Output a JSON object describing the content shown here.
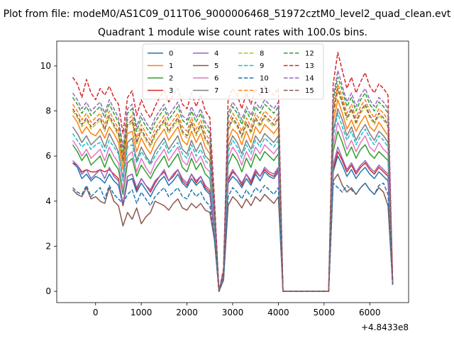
{
  "figure": {
    "suptitle": "Plot from file: modeM0/AS1C09_011T06_9000006468_51972cztM0_level2_quad_clean.evt",
    "offset_label": "+4.8433e8"
  },
  "chart_data": {
    "type": "line",
    "title": "Quadrant 1 module wise count rates with 100.0s bins.",
    "xlabel": "",
    "ylabel": "",
    "xlim": [
      -850,
      6850
    ],
    "ylim": [
      -0.5,
      11.1
    ],
    "xticks": [
      0,
      1000,
      2000,
      3000,
      4000,
      5000,
      6000
    ],
    "yticks": [
      0,
      2,
      4,
      6,
      8,
      10
    ],
    "x_offset": 484330000,
    "legend_location": "upper-center",
    "x": [
      -500,
      -400,
      -300,
      -200,
      -100,
      0,
      100,
      200,
      300,
      400,
      500,
      600,
      700,
      800,
      900,
      1000,
      1100,
      1200,
      1300,
      1400,
      1500,
      1600,
      1700,
      1800,
      1900,
      2000,
      2100,
      2200,
      2300,
      2400,
      2500,
      2600,
      2700,
      2800,
      2900,
      3000,
      3100,
      3200,
      3300,
      3400,
      3500,
      3600,
      3700,
      3800,
      3900,
      4000,
      4100,
      5100,
      5200,
      5300,
      5400,
      5500,
      5600,
      5700,
      5800,
      5900,
      6000,
      6100,
      6200,
      6300,
      6400,
      6500
    ],
    "series": [
      {
        "name": "0",
        "color": "#1f77b4",
        "dash": "solid",
        "values": [
          5.7,
          5.5,
          5.0,
          5.2,
          4.9,
          5.1,
          5.0,
          4.8,
          5.2,
          4.9,
          4.7,
          3.8,
          4.9,
          5.0,
          4.4,
          4.8,
          4.5,
          4.2,
          4.6,
          4.9,
          5.1,
          4.7,
          4.9,
          5.2,
          4.8,
          4.6,
          5.0,
          4.7,
          4.9,
          4.5,
          4.3,
          2.6,
          0.0,
          0.6,
          4.8,
          5.1,
          4.9,
          4.6,
          5.0,
          4.7,
          5.2,
          4.9,
          5.3,
          5.1,
          5.0,
          5.3,
          0.0,
          0.0,
          5.3,
          6.0,
          5.6,
          5.1,
          5.4,
          5.0,
          5.3,
          5.5,
          5.2,
          5.0,
          5.3,
          5.1,
          4.9,
          0.3
        ]
      },
      {
        "name": "1",
        "color": "#ff7f0e",
        "dash": "solid",
        "values": [
          7.8,
          7.5,
          7.0,
          7.3,
          7.0,
          6.9,
          7.2,
          6.8,
          7.3,
          7.0,
          6.6,
          5.4,
          7.0,
          7.1,
          6.2,
          6.8,
          6.4,
          6.1,
          6.6,
          6.9,
          7.2,
          6.7,
          7.0,
          7.3,
          6.7,
          6.5,
          7.1,
          6.6,
          7.0,
          6.4,
          6.1,
          3.3,
          0.0,
          0.8,
          6.7,
          7.2,
          7.0,
          6.5,
          7.1,
          6.6,
          7.3,
          7.0,
          7.4,
          7.2,
          7.0,
          7.3,
          0.0,
          0.0,
          7.5,
          8.5,
          7.9,
          7.2,
          7.6,
          7.1,
          7.5,
          7.8,
          7.3,
          7.1,
          7.5,
          7.2,
          6.9,
          0.4
        ]
      },
      {
        "name": "2",
        "color": "#2ca02c",
        "dash": "solid",
        "values": [
          6.5,
          6.2,
          5.8,
          6.1,
          5.6,
          5.8,
          6.0,
          5.5,
          6.1,
          5.7,
          5.4,
          4.3,
          5.7,
          5.9,
          5.1,
          5.6,
          5.3,
          5.0,
          5.4,
          5.7,
          6.0,
          5.5,
          5.8,
          6.1,
          5.5,
          5.3,
          5.9,
          5.4,
          5.7,
          5.2,
          5.0,
          2.9,
          0.0,
          0.7,
          5.6,
          6.1,
          5.8,
          5.3,
          5.9,
          5.5,
          6.1,
          5.8,
          6.2,
          6.0,
          5.8,
          6.1,
          0.0,
          0.0,
          6.2,
          7.1,
          6.6,
          6.0,
          6.4,
          5.9,
          6.3,
          6.5,
          6.1,
          5.9,
          6.2,
          6.0,
          5.8,
          0.3
        ]
      },
      {
        "name": "3",
        "color": "#d62728",
        "dash": "solid",
        "values": [
          5.7,
          5.6,
          5.3,
          5.4,
          5.3,
          5.3,
          5.4,
          5.3,
          5.4,
          5.2,
          5.0,
          3.8,
          5.1,
          5.2,
          4.5,
          5.0,
          4.7,
          4.4,
          4.8,
          5.1,
          5.3,
          4.9,
          5.1,
          5.4,
          4.9,
          4.7,
          5.2,
          4.8,
          5.1,
          4.6,
          4.4,
          2.6,
          0.0,
          0.6,
          4.9,
          5.3,
          5.1,
          4.7,
          5.2,
          4.8,
          5.3,
          5.1,
          5.4,
          5.2,
          5.1,
          5.4,
          0.0,
          0.0,
          5.4,
          6.2,
          5.8,
          5.3,
          5.6,
          5.2,
          5.5,
          5.7,
          5.4,
          5.2,
          5.5,
          5.3,
          5.1,
          0.3
        ]
      },
      {
        "name": "4",
        "color": "#9467bd",
        "dash": "solid",
        "values": [
          5.8,
          5.6,
          5.2,
          5.4,
          5.0,
          5.2,
          5.4,
          5.0,
          5.5,
          5.1,
          4.9,
          3.9,
          5.1,
          5.2,
          4.6,
          5.0,
          4.7,
          4.5,
          4.9,
          5.1,
          5.4,
          4.9,
          5.2,
          5.4,
          5.0,
          4.8,
          5.2,
          4.9,
          5.1,
          4.7,
          4.5,
          2.7,
          0.0,
          0.6,
          5.0,
          5.4,
          5.1,
          4.8,
          5.2,
          4.9,
          5.4,
          5.1,
          5.5,
          5.3,
          5.2,
          5.5,
          0.0,
          0.0,
          5.6,
          6.4,
          5.9,
          5.4,
          5.7,
          5.3,
          5.6,
          5.8,
          5.5,
          5.3,
          5.6,
          5.4,
          5.2,
          0.3
        ]
      },
      {
        "name": "5",
        "color": "#8c564b",
        "dash": "solid",
        "values": [
          4.5,
          4.3,
          4.2,
          4.6,
          4.1,
          4.2,
          4.0,
          3.9,
          4.6,
          4.0,
          3.8,
          2.9,
          3.5,
          3.2,
          3.7,
          3.0,
          3.3,
          3.5,
          4.0,
          3.9,
          3.8,
          3.6,
          3.9,
          4.1,
          3.7,
          3.6,
          3.9,
          3.7,
          3.9,
          3.6,
          3.5,
          2.3,
          0.0,
          0.5,
          3.8,
          4.2,
          4.0,
          3.7,
          4.1,
          3.8,
          4.2,
          4.0,
          4.3,
          4.1,
          3.9,
          4.2,
          0.0,
          0.0,
          4.9,
          5.2,
          4.7,
          4.4,
          4.6,
          4.3,
          4.6,
          4.8,
          4.5,
          4.3,
          4.6,
          4.4,
          3.8,
          0.3
        ]
      },
      {
        "name": "6",
        "color": "#e377c2",
        "dash": "solid",
        "values": [
          6.7,
          6.4,
          6.0,
          6.3,
          5.9,
          6.1,
          6.3,
          5.8,
          6.4,
          6.0,
          5.7,
          4.5,
          6.0,
          6.2,
          5.3,
          5.9,
          5.5,
          5.2,
          5.7,
          6.0,
          6.3,
          5.8,
          6.1,
          6.4,
          5.8,
          5.6,
          6.2,
          5.7,
          6.0,
          5.5,
          5.3,
          3.0,
          0.0,
          0.7,
          5.9,
          6.4,
          6.1,
          5.6,
          6.2,
          5.8,
          6.4,
          6.1,
          6.5,
          6.3,
          6.1,
          6.4,
          0.0,
          0.0,
          6.5,
          7.5,
          7.0,
          6.3,
          6.7,
          6.2,
          6.6,
          6.9,
          6.4,
          6.2,
          6.6,
          6.3,
          6.1,
          0.4
        ]
      },
      {
        "name": "7",
        "color": "#7f7f7f",
        "dash": "solid",
        "values": [
          7.3,
          7.0,
          6.6,
          6.9,
          6.5,
          6.7,
          6.9,
          6.4,
          7.0,
          6.6,
          6.2,
          5.0,
          6.6,
          6.8,
          5.8,
          6.4,
          6.0,
          5.7,
          6.2,
          6.5,
          6.8,
          6.3,
          6.6,
          6.9,
          6.3,
          6.1,
          6.7,
          6.2,
          6.6,
          6.0,
          5.8,
          3.2,
          0.0,
          0.8,
          6.4,
          6.9,
          6.6,
          6.1,
          6.7,
          6.3,
          6.9,
          6.6,
          7.0,
          6.8,
          6.6,
          6.9,
          0.0,
          0.0,
          7.1,
          8.1,
          7.6,
          6.9,
          7.3,
          6.7,
          7.1,
          7.4,
          7.0,
          6.7,
          7.1,
          6.9,
          6.6,
          0.4
        ]
      },
      {
        "name": "8",
        "color": "#bcbd22",
        "dash": "dashed",
        "values": [
          8.0,
          7.7,
          7.3,
          7.6,
          7.2,
          7.4,
          7.6,
          7.1,
          7.7,
          7.3,
          6.9,
          5.7,
          7.3,
          7.5,
          6.5,
          7.1,
          6.7,
          6.4,
          6.9,
          7.2,
          7.5,
          7.0,
          7.3,
          7.6,
          7.0,
          6.8,
          7.4,
          6.9,
          7.3,
          6.7,
          6.4,
          3.5,
          0.0,
          0.8,
          7.1,
          7.6,
          7.3,
          6.8,
          7.4,
          7.0,
          7.6,
          7.3,
          7.7,
          7.5,
          7.3,
          7.6,
          0.0,
          0.0,
          7.8,
          8.9,
          8.3,
          7.6,
          8.0,
          7.4,
          7.9,
          8.2,
          7.7,
          7.4,
          7.8,
          7.6,
          7.3,
          0.4
        ]
      },
      {
        "name": "9",
        "color": "#17becf",
        "dash": "dashed",
        "values": [
          7.0,
          6.7,
          6.4,
          6.6,
          6.3,
          6.5,
          6.6,
          6.2,
          6.7,
          6.4,
          6.1,
          4.9,
          6.4,
          6.5,
          5.7,
          6.2,
          5.9,
          5.6,
          6.0,
          6.3,
          6.6,
          6.1,
          6.4,
          6.6,
          6.1,
          5.9,
          6.5,
          6.0,
          6.3,
          5.8,
          5.6,
          3.1,
          0.0,
          0.7,
          6.2,
          6.7,
          6.4,
          5.9,
          6.5,
          6.1,
          6.7,
          6.4,
          6.8,
          6.6,
          6.4,
          6.7,
          0.0,
          0.0,
          6.9,
          7.9,
          7.3,
          6.7,
          7.1,
          6.5,
          6.9,
          7.2,
          6.8,
          6.5,
          6.9,
          6.7,
          6.4,
          0.4
        ]
      },
      {
        "name": "10",
        "color": "#1f77b4",
        "dash": "dashed",
        "values": [
          4.6,
          4.4,
          4.3,
          4.7,
          4.2,
          4.4,
          4.6,
          4.1,
          4.7,
          4.3,
          4.1,
          3.9,
          4.3,
          4.5,
          3.9,
          4.4,
          4.1,
          3.8,
          4.2,
          4.4,
          4.6,
          4.2,
          4.4,
          4.6,
          4.2,
          4.1,
          4.5,
          4.2,
          4.4,
          4.0,
          3.8,
          2.4,
          0.0,
          0.5,
          4.2,
          4.6,
          4.4,
          4.1,
          4.5,
          4.2,
          4.6,
          4.4,
          4.7,
          4.5,
          4.3,
          4.6,
          0.0,
          0.0,
          4.8,
          4.6,
          4.4,
          4.7,
          4.5,
          4.3,
          4.6,
          4.8,
          4.5,
          4.3,
          4.7,
          4.8,
          4.3,
          0.3
        ]
      },
      {
        "name": "11",
        "color": "#ff7f0e",
        "dash": "dashed",
        "values": [
          8.3,
          8.0,
          7.6,
          7.9,
          7.5,
          7.7,
          7.9,
          7.4,
          8.0,
          7.6,
          7.2,
          6.0,
          7.6,
          7.8,
          6.8,
          7.4,
          7.0,
          6.7,
          7.2,
          7.5,
          7.8,
          7.3,
          7.6,
          7.9,
          7.3,
          7.1,
          7.7,
          7.2,
          7.6,
          7.0,
          6.7,
          3.6,
          0.0,
          0.9,
          7.4,
          7.9,
          7.6,
          7.1,
          7.7,
          7.3,
          7.9,
          7.6,
          8.0,
          7.8,
          7.6,
          7.9,
          0.0,
          0.0,
          8.1,
          9.2,
          8.6,
          7.9,
          8.3,
          7.7,
          8.2,
          8.5,
          8.0,
          7.7,
          8.1,
          7.9,
          7.6,
          0.4
        ]
      },
      {
        "name": "12",
        "color": "#2ca02c",
        "dash": "dashed",
        "values": [
          8.6,
          8.3,
          7.9,
          8.2,
          7.8,
          8.0,
          8.2,
          7.7,
          8.3,
          7.9,
          7.5,
          6.2,
          7.9,
          8.1,
          7.1,
          7.7,
          7.3,
          7.0,
          7.5,
          7.8,
          8.1,
          7.6,
          7.9,
          8.2,
          7.6,
          7.4,
          8.0,
          7.5,
          7.9,
          7.3,
          7.0,
          3.8,
          0.0,
          0.9,
          7.7,
          8.2,
          7.9,
          7.4,
          8.0,
          7.6,
          8.2,
          7.9,
          8.3,
          8.1,
          7.9,
          8.2,
          0.0,
          0.0,
          8.4,
          9.5,
          8.9,
          8.2,
          8.6,
          8.0,
          8.5,
          8.8,
          8.3,
          8.0,
          8.4,
          8.2,
          7.9,
          0.4
        ]
      },
      {
        "name": "13",
        "color": "#d62728",
        "dash": "dashed",
        "values": [
          9.5,
          9.2,
          8.6,
          9.4,
          8.8,
          8.5,
          9.0,
          8.7,
          9.1,
          8.6,
          8.3,
          7.0,
          8.6,
          8.9,
          7.8,
          8.5,
          8.0,
          7.7,
          8.2,
          8.6,
          8.9,
          8.4,
          8.7,
          9.0,
          8.3,
          8.1,
          8.8,
          8.2,
          8.7,
          8.0,
          7.7,
          4.2,
          0.0,
          1.0,
          8.5,
          9.0,
          8.7,
          8.1,
          8.8,
          8.3,
          9.0,
          8.7,
          9.1,
          8.9,
          8.7,
          9.0,
          0.0,
          0.0,
          9.2,
          10.6,
          9.8,
          9.0,
          9.5,
          8.8,
          9.3,
          9.7,
          9.1,
          8.8,
          9.2,
          9.0,
          8.7,
          0.5
        ]
      },
      {
        "name": "14",
        "color": "#9467bd",
        "dash": "dashed",
        "values": [
          8.8,
          8.5,
          8.1,
          8.4,
          8.0,
          8.2,
          8.4,
          7.9,
          8.5,
          8.1,
          7.7,
          6.4,
          8.1,
          8.3,
          7.3,
          7.9,
          7.5,
          7.2,
          7.7,
          8.0,
          8.3,
          7.8,
          8.1,
          8.4,
          7.8,
          7.6,
          8.2,
          7.7,
          8.1,
          7.5,
          7.2,
          3.9,
          0.0,
          0.9,
          7.9,
          8.4,
          8.1,
          7.6,
          8.2,
          7.8,
          8.4,
          8.1,
          8.5,
          8.3,
          8.1,
          8.4,
          0.0,
          0.0,
          8.6,
          9.8,
          9.1,
          8.4,
          8.8,
          8.2,
          8.7,
          9.0,
          8.5,
          8.2,
          8.6,
          8.4,
          8.1,
          0.4
        ]
      },
      {
        "name": "15",
        "color": "#8c564b",
        "dash": "dashed",
        "values": [
          8.1,
          7.8,
          7.4,
          7.7,
          7.3,
          7.5,
          7.7,
          7.2,
          7.8,
          7.4,
          7.0,
          5.8,
          7.4,
          7.6,
          6.6,
          7.2,
          6.8,
          6.5,
          7.0,
          7.3,
          7.6,
          7.1,
          7.4,
          7.7,
          7.1,
          6.9,
          7.5,
          7.0,
          7.4,
          6.8,
          6.5,
          3.6,
          0.0,
          0.8,
          7.2,
          7.7,
          7.4,
          6.9,
          7.5,
          7.1,
          7.7,
          7.4,
          7.8,
          7.6,
          7.4,
          7.7,
          0.0,
          0.0,
          7.9,
          9.0,
          8.4,
          7.7,
          8.1,
          7.5,
          8.0,
          8.3,
          7.8,
          7.5,
          7.9,
          7.7,
          7.4,
          0.4
        ]
      }
    ]
  }
}
